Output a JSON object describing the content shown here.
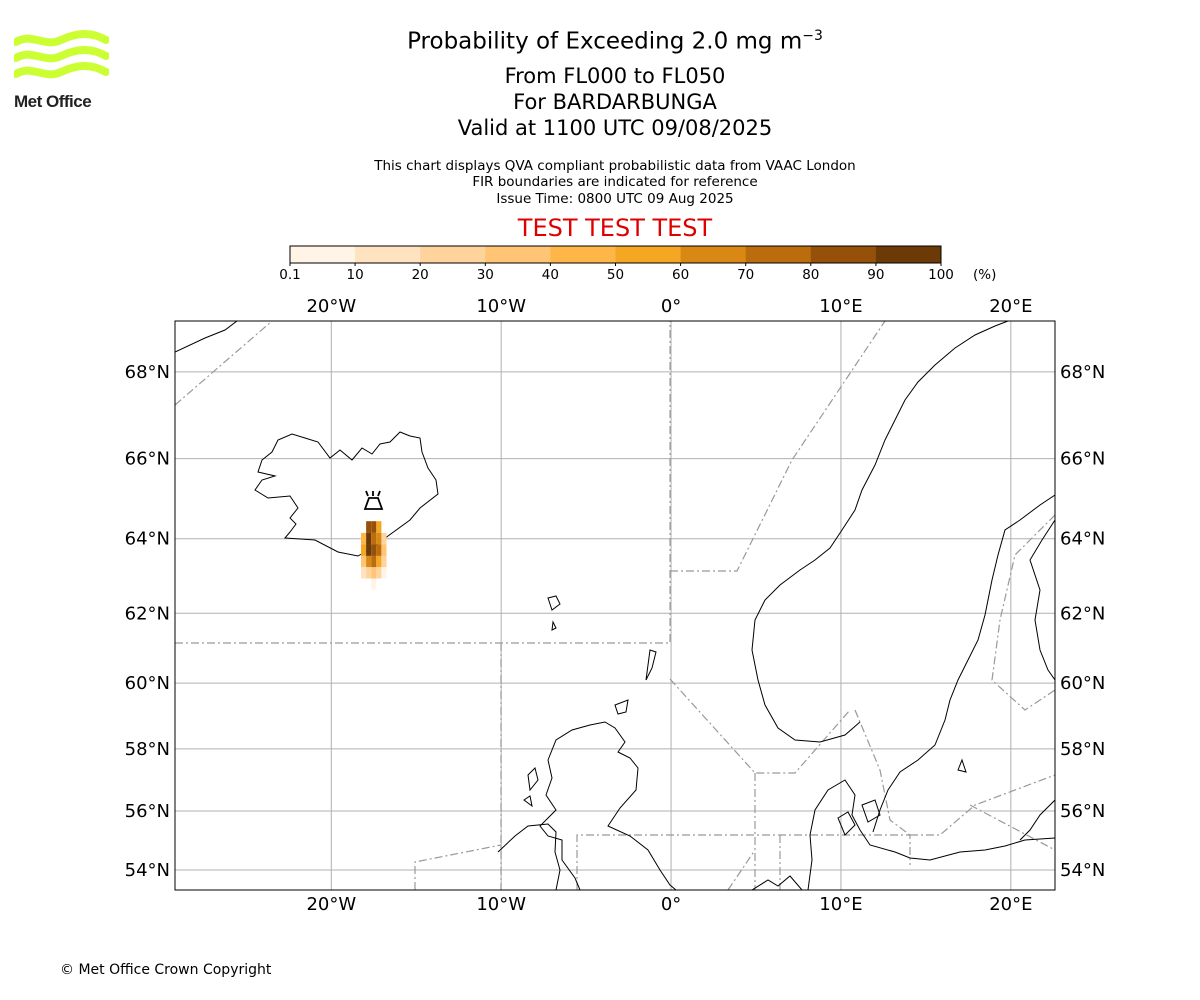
{
  "header": {
    "title_main": "Probability of Exceeding 2.0 mg m",
    "title_superscript": "−3",
    "subtitle_lines": [
      "From FL000 to FL050",
      "For BARDARBUNGA",
      "Valid at 1100 UTC 09/08/2025"
    ],
    "info_lines": [
      "This chart displays QVA compliant probabilistic data from VAAC London",
      "FIR boundaries are indicated for reference",
      "Issue Time: 0800 UTC 09 Aug 2025"
    ],
    "test_banner": "TEST TEST TEST",
    "test_color": "#dd0000"
  },
  "logo": {
    "text": "Met Office",
    "color": "#ccff33",
    "icon": "met-office-waves-logo"
  },
  "colorbar": {
    "tick_labels": [
      "0.1",
      "10",
      "20",
      "30",
      "40",
      "50",
      "60",
      "70",
      "80",
      "90",
      "100"
    ],
    "unit": "(%)",
    "colors": [
      "#fff4e6",
      "#ffe2bf",
      "#ffd39c",
      "#ffc474",
      "#ffb648",
      "#f5a623",
      "#d98814",
      "#bb6c0d",
      "#955109",
      "#6b3a06"
    ]
  },
  "map": {
    "lon_labels": [
      "20°W",
      "10°W",
      "0°",
      "10°E",
      "20°E"
    ],
    "lat_labels": [
      "68°N",
      "66°N",
      "64°N",
      "62°N",
      "60°N",
      "58°N",
      "56°N",
      "54°N"
    ],
    "lon_values": [
      -20,
      -10,
      0,
      10,
      20
    ],
    "lat_values": [
      68,
      66,
      64,
      62,
      60,
      58,
      56,
      54
    ],
    "extent": {
      "lon_min": -29.2,
      "lon_max": 22.6,
      "lat_min": 53.3,
      "lat_max": 69.1
    },
    "grid": true,
    "grid_color": "#b0b0b0",
    "coastline_color": "#000000",
    "fir_boundary_color": "#999999",
    "volcano": {
      "name": "BARDARBUNGA",
      "lon": -17.5,
      "lat": 64.63,
      "icon": "volcano-icon"
    },
    "probability_cells": [
      {
        "lon": -17.8,
        "lat": 64.3,
        "p": 85
      },
      {
        "lon": -17.5,
        "lat": 64.3,
        "p": 80
      },
      {
        "lon": -17.2,
        "lat": 64.3,
        "p": 55
      },
      {
        "lon": -18.1,
        "lat": 64.0,
        "p": 45
      },
      {
        "lon": -17.8,
        "lat": 64.0,
        "p": 90
      },
      {
        "lon": -17.5,
        "lat": 64.0,
        "p": 75
      },
      {
        "lon": -17.2,
        "lat": 64.0,
        "p": 60
      },
      {
        "lon": -16.9,
        "lat": 64.0,
        "p": 25
      },
      {
        "lon": -18.1,
        "lat": 63.7,
        "p": 55
      },
      {
        "lon": -17.8,
        "lat": 63.7,
        "p": 92
      },
      {
        "lon": -17.5,
        "lat": 63.7,
        "p": 88
      },
      {
        "lon": -17.2,
        "lat": 63.7,
        "p": 70
      },
      {
        "lon": -16.9,
        "lat": 63.7,
        "p": 35
      },
      {
        "lon": -18.1,
        "lat": 63.4,
        "p": 30
      },
      {
        "lon": -17.8,
        "lat": 63.4,
        "p": 60
      },
      {
        "lon": -17.5,
        "lat": 63.4,
        "p": 75
      },
      {
        "lon": -17.2,
        "lat": 63.4,
        "p": 50
      },
      {
        "lon": -16.9,
        "lat": 63.4,
        "p": 20
      },
      {
        "lon": -18.1,
        "lat": 63.1,
        "p": 12
      },
      {
        "lon": -17.8,
        "lat": 63.1,
        "p": 25
      },
      {
        "lon": -17.5,
        "lat": 63.1,
        "p": 30
      },
      {
        "lon": -17.2,
        "lat": 63.1,
        "p": 20
      },
      {
        "lon": -16.9,
        "lat": 63.1,
        "p": 8
      },
      {
        "lon": -17.5,
        "lat": 62.8,
        "p": 5
      }
    ]
  },
  "footer": {
    "copyright": "© Met Office Crown Copyright"
  }
}
